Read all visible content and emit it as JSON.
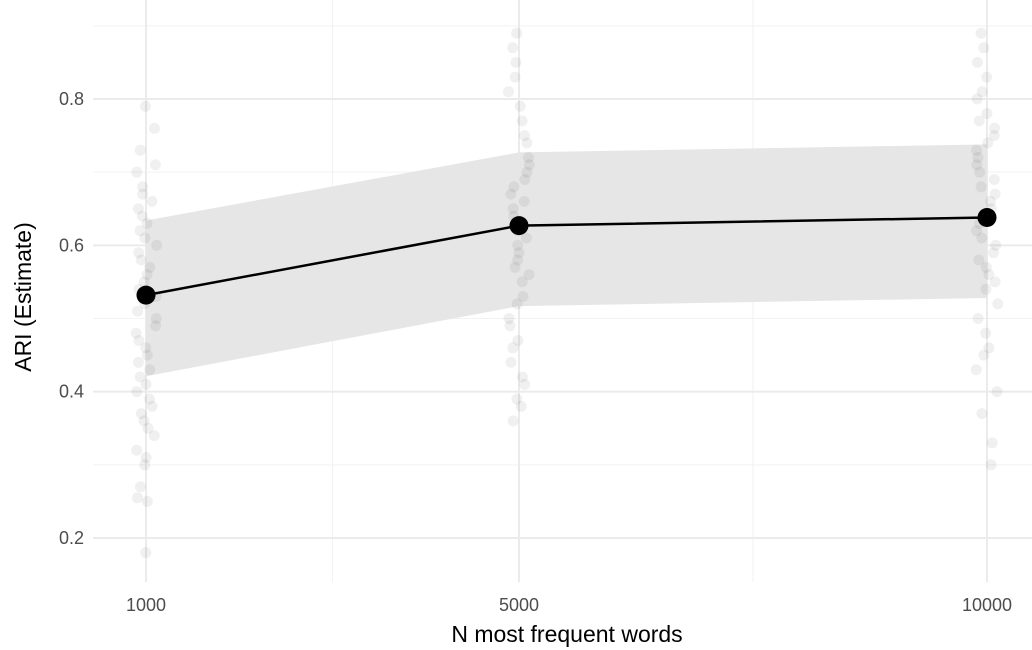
{
  "chart_data": {
    "type": "line",
    "title": "",
    "xlabel": "N most frequent words",
    "ylabel": "ARI (Estimate)",
    "x_categories": [
      "1000",
      "5000",
      "10000"
    ],
    "y_ticks": [
      "0.2",
      "0.4",
      "0.6",
      "0.8"
    ],
    "ylim": [
      0.15,
      0.91
    ],
    "grid": true,
    "series": [
      {
        "values": [
          0.532,
          0.627,
          0.638
        ],
        "ci_lower": [
          0.421,
          0.517,
          0.528
        ],
        "ci_upper": [
          0.634,
          0.727,
          0.738
        ]
      }
    ],
    "raw_points": [
      {
        "category": "1000",
        "values": [
          0.18,
          0.25,
          0.255,
          0.27,
          0.3,
          0.31,
          0.32,
          0.34,
          0.35,
          0.36,
          0.37,
          0.38,
          0.39,
          0.4,
          0.41,
          0.42,
          0.43,
          0.44,
          0.45,
          0.46,
          0.47,
          0.48,
          0.49,
          0.5,
          0.51,
          0.52,
          0.53,
          0.54,
          0.55,
          0.56,
          0.57,
          0.58,
          0.59,
          0.6,
          0.61,
          0.62,
          0.63,
          0.64,
          0.65,
          0.66,
          0.67,
          0.68,
          0.7,
          0.71,
          0.73,
          0.76,
          0.79
        ]
      },
      {
        "category": "5000",
        "values": [
          0.36,
          0.38,
          0.39,
          0.41,
          0.42,
          0.44,
          0.46,
          0.47,
          0.49,
          0.5,
          0.52,
          0.53,
          0.55,
          0.56,
          0.57,
          0.58,
          0.59,
          0.6,
          0.61,
          0.62,
          0.63,
          0.64,
          0.65,
          0.66,
          0.67,
          0.68,
          0.69,
          0.7,
          0.71,
          0.72,
          0.74,
          0.75,
          0.77,
          0.79,
          0.81,
          0.83,
          0.85,
          0.87,
          0.89
        ]
      },
      {
        "category": "10000",
        "values": [
          0.3,
          0.33,
          0.37,
          0.4,
          0.43,
          0.45,
          0.46,
          0.48,
          0.5,
          0.52,
          0.54,
          0.55,
          0.56,
          0.57,
          0.58,
          0.59,
          0.6,
          0.61,
          0.62,
          0.63,
          0.64,
          0.65,
          0.66,
          0.67,
          0.68,
          0.69,
          0.7,
          0.71,
          0.72,
          0.73,
          0.74,
          0.75,
          0.76,
          0.77,
          0.78,
          0.8,
          0.81,
          0.83,
          0.85,
          0.87,
          0.89
        ]
      }
    ],
    "colors": {
      "ribbon": "#e6e6e6",
      "line": "#000000",
      "point": "#000000",
      "raw_point": "#000000",
      "grid_major": "#ebebeb",
      "grid_minor": "#f2f2f2"
    }
  }
}
